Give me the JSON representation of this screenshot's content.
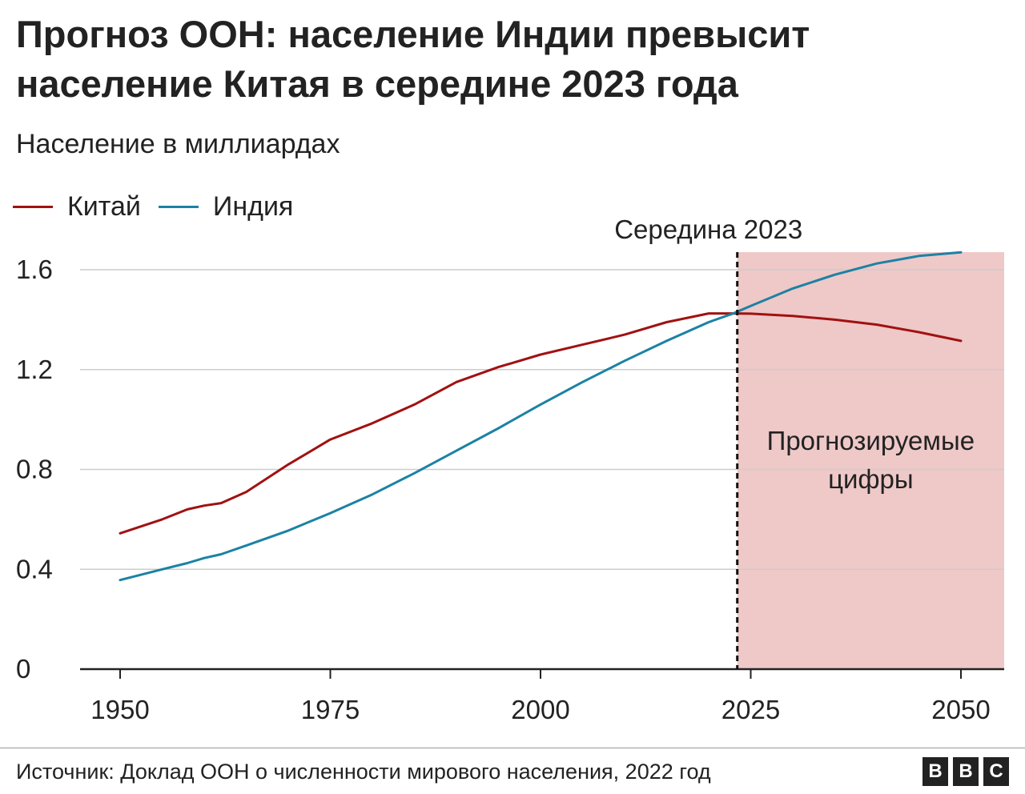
{
  "title": "Прогноз ООН: население Индии превысит население Китая в середине 2023 года",
  "subtitle": "Население в миллиардах",
  "legend": [
    {
      "label": "Китай",
      "color": "#a11111"
    },
    {
      "label": "Индия",
      "color": "#1b82a4"
    }
  ],
  "source": "Источник: Доклад ООН о численности мирового населения, 2022 год",
  "logo": [
    "B",
    "B",
    "C"
  ],
  "chart_data": {
    "type": "line",
    "title": "Прогноз ООН: население Индии превысит население Китая в середине 2023 года",
    "ylabel": "Население в миллиардах",
    "xlim": [
      1950,
      2055
    ],
    "ylim": [
      0,
      1.6
    ],
    "x_ticks": [
      "1950",
      "1975",
      "2000",
      "2025",
      "2050"
    ],
    "y_ticks": [
      "0",
      "0.4",
      "0.8",
      "1.2",
      "1.6"
    ],
    "x_tick_values": [
      1950,
      1975,
      2000,
      2025,
      2050
    ],
    "y_tick_values": [
      0,
      0.4,
      0.8,
      1.2,
      1.6
    ],
    "grid": true,
    "x": [
      1950,
      1955,
      1958,
      1960,
      1962,
      1965,
      1970,
      1975,
      1980,
      1985,
      1990,
      1995,
      2000,
      2005,
      2010,
      2015,
      2020,
      2023,
      2025,
      2030,
      2035,
      2040,
      2045,
      2050
    ],
    "series": [
      {
        "name": "Китай",
        "color": "#a11111",
        "values": [
          0.544,
          0.6,
          0.64,
          0.655,
          0.665,
          0.71,
          0.82,
          0.92,
          0.985,
          1.06,
          1.15,
          1.21,
          1.26,
          1.3,
          1.34,
          1.39,
          1.425,
          1.425,
          1.424,
          1.415,
          1.4,
          1.38,
          1.35,
          1.315
        ]
      },
      {
        "name": "Индия",
        "color": "#1b82a4",
        "values": [
          0.357,
          0.4,
          0.425,
          0.445,
          0.46,
          0.495,
          0.555,
          0.625,
          0.7,
          0.785,
          0.875,
          0.965,
          1.06,
          1.15,
          1.235,
          1.315,
          1.39,
          1.426,
          1.455,
          1.525,
          1.58,
          1.625,
          1.655,
          1.67
        ]
      }
    ],
    "annotations": [
      {
        "text": "Середина 2023",
        "x": 2023.4
      },
      {
        "text_lines": [
          "Прогнозируемые",
          "цифры"
        ],
        "shaded_range": [
          2023.4,
          2055
        ]
      }
    ]
  }
}
